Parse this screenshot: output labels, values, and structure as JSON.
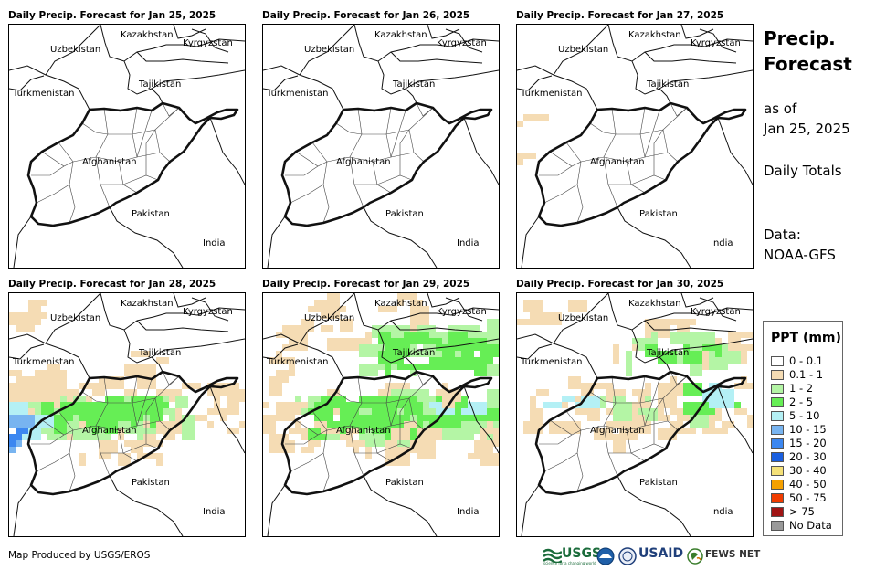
{
  "panels": [
    {
      "title": "Daily Precip. Forecast for Jan 25, 2025",
      "day": 0
    },
    {
      "title": "Daily Precip. Forecast for Jan 26, 2025",
      "day": 1
    },
    {
      "title": "Daily Precip. Forecast for Jan 27, 2025",
      "day": 2
    },
    {
      "title": "Daily Precip. Forecast for Jan 28, 2025",
      "day": 3
    },
    {
      "title": "Daily Precip. Forecast for Jan 29, 2025",
      "day": 4
    },
    {
      "title": "Daily Precip. Forecast for Jan 30, 2025",
      "day": 5
    }
  ],
  "country_labels": {
    "kazakhstan": "Kazakhstan",
    "kyrgyzstan": "Kyrgyzstan",
    "uzbekistan": "Uzbekistan",
    "tajikistan": "Tajikistan",
    "turkmenistan": "Turkmenistan",
    "afghanistan": "Afghanistan",
    "pakistan": "Pakistan",
    "india": "India"
  },
  "side": {
    "title_line1": "Precip.",
    "title_line2": "Forecast",
    "asof_line1": "as of",
    "asof_line2": "Jan 25, 2025",
    "totals": "Daily Totals",
    "data_line1": "Data:",
    "data_line2": "NOAA-GFS"
  },
  "legend": {
    "title": "PPT (mm)",
    "items": [
      {
        "label": "0 - 0.1",
        "color": "#ffffff"
      },
      {
        "label": "0.1 - 1",
        "color": "#f5dcb4"
      },
      {
        "label": "1 - 2",
        "color": "#b4f5a5"
      },
      {
        "label": "2 - 5",
        "color": "#66ee55"
      },
      {
        "label": "5 - 10",
        "color": "#b4f0f5"
      },
      {
        "label": "10 - 15",
        "color": "#78b4f0"
      },
      {
        "label": "15 - 20",
        "color": "#3c87f0"
      },
      {
        "label": "20 - 30",
        "color": "#1a5fe0"
      },
      {
        "label": "30 - 40",
        "color": "#f5e178"
      },
      {
        "label": "40 - 50",
        "color": "#f5a000"
      },
      {
        "label": "50 - 75",
        "color": "#f03c00"
      },
      {
        "label": "> 75",
        "color": "#a01414"
      },
      {
        "label": "No Data",
        "color": "#999999"
      }
    ]
  },
  "footer": {
    "credit": "Map Produced by USGS/EROS",
    "logo_usgs": "USGS",
    "logo_usgs_tagline": "science for a changing world",
    "logo_usaid": "USAID",
    "logo_fews": "FEWS NET"
  }
}
